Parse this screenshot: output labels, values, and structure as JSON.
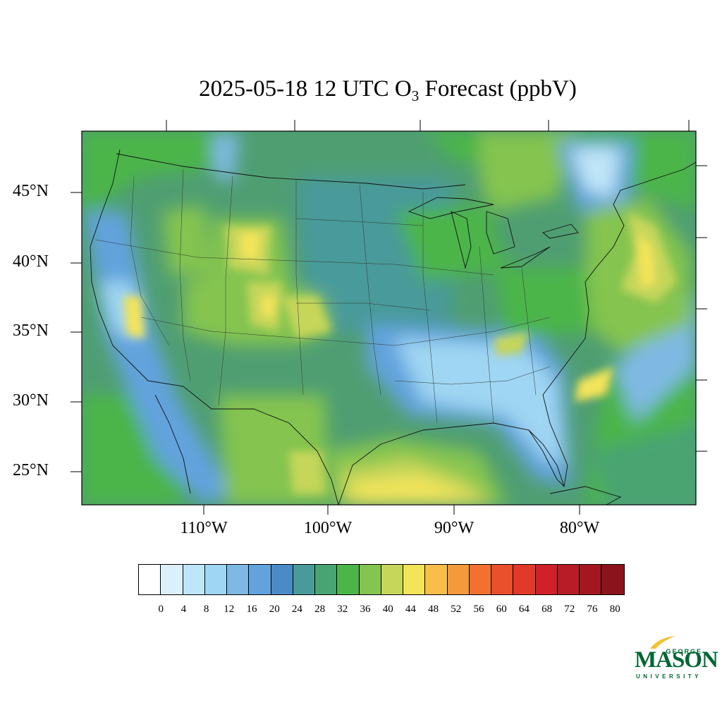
{
  "title": {
    "prefix": "2025-05-18 12 UTC O",
    "subscript": "3",
    "suffix": " Forecast (ppbV)"
  },
  "map": {
    "region": "Contiguous United States",
    "projection": "Lambert conformal",
    "field": "surface ozone forecast",
    "lat_labels": [
      "45°N",
      "40°N",
      "35°N",
      "30°N",
      "25°N"
    ],
    "lon_labels": [
      "110°W",
      "100°W",
      "90°W",
      "80°W"
    ],
    "features": {
      "ocean_background_color": "#4f9e72",
      "gulf_plume_color": "#f2e25b",
      "atlantic_plume_color": "#c7d85a",
      "rockies_high_color": "#e2d75a",
      "southeast_low_color": "#8cc6ec"
    }
  },
  "colorbar": {
    "colors": [
      "#ffffff",
      "#dcf0fb",
      "#bfe6f8",
      "#9fd6f3",
      "#7fb9e3",
      "#62a3dd",
      "#4a8bc7",
      "#4a9a9a",
      "#48a472",
      "#4bb54a",
      "#84c450",
      "#c6d65a",
      "#f3e45a",
      "#f7be4a",
      "#f59a3a",
      "#f27130",
      "#e9502b",
      "#e13a2a",
      "#d0202a",
      "#b81c26",
      "#a31820",
      "#8b141c"
    ],
    "labels": [
      "0",
      "4",
      "8",
      "12",
      "16",
      "20",
      "24",
      "28",
      "32",
      "36",
      "40",
      "44",
      "48",
      "52",
      "56",
      "60",
      "64",
      "68",
      "72",
      "76",
      "80"
    ]
  },
  "logo": {
    "line1": "GEORGE",
    "line2": "MASON",
    "line3": "UNIVERSITY",
    "color": "#006633",
    "accent": "#f2c230"
  }
}
